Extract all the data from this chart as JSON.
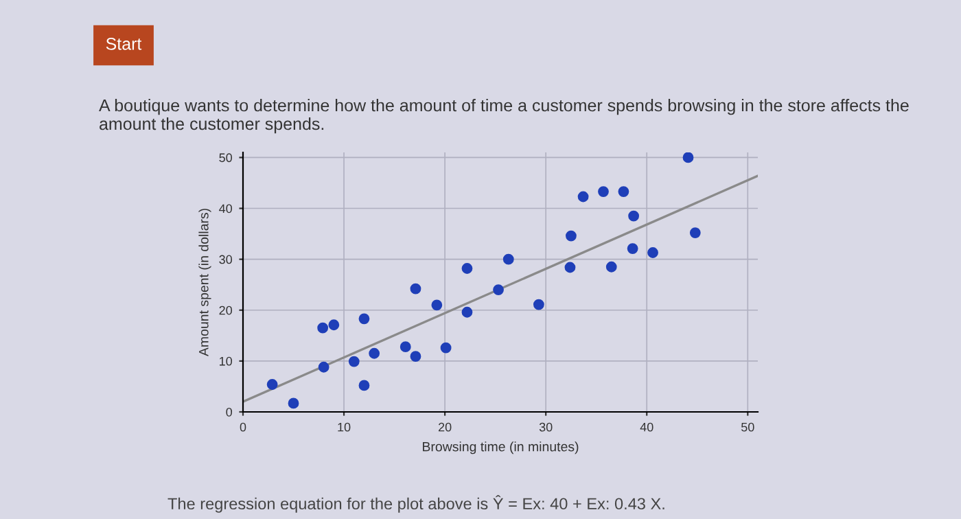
{
  "chart_data": {
    "type": "scatter",
    "title": "A boutique wants to determine how the amount of time a customer spends browsing in the store affects the amount the customer spends.",
    "xlabel": "Browsing time (in minutes)",
    "ylabel": "Amount spent (in dollars)",
    "annotations": [
      "Start",
      "The regression equation for the plot above is Ŷ = Ex: 40 + Ex: 0.43 X."
    ],
    "xlim": [
      0,
      51
    ],
    "ylim": [
      0,
      51
    ],
    "xticks": [
      0,
      10,
      20,
      30,
      40,
      50
    ],
    "yticks": [
      0,
      10,
      20,
      30,
      40,
      50
    ],
    "grid": true,
    "series": [
      {
        "marker": "circle",
        "color": "#1f3fb8",
        "x": [
          2.9,
          5.0,
          7.9,
          9.0,
          8.0,
          11.0,
          12.0,
          12.0,
          13.0,
          16.1,
          17.1,
          17.1,
          19.2,
          20.1,
          22.2,
          22.2,
          25.3,
          26.3,
          29.3,
          32.5,
          32.4,
          33.7,
          35.7,
          37.7,
          36.5,
          38.7,
          38.6,
          40.6,
          44.1,
          44.8
        ],
        "values": [
          5.4,
          1.7,
          16.5,
          17.1,
          8.8,
          9.9,
          18.3,
          5.2,
          11.5,
          12.8,
          24.2,
          10.9,
          21.0,
          12.6,
          28.2,
          19.6,
          24.0,
          30.0,
          21.1,
          34.6,
          28.4,
          42.3,
          43.3,
          43.3,
          28.5,
          38.5,
          32.1,
          31.3,
          50.0,
          35.2
        ]
      },
      {
        "type": "line",
        "marker": "none",
        "color": "#8a8a8a",
        "x": [
          0,
          51
        ],
        "values": [
          2.0,
          46.4
        ]
      }
    ]
  }
}
